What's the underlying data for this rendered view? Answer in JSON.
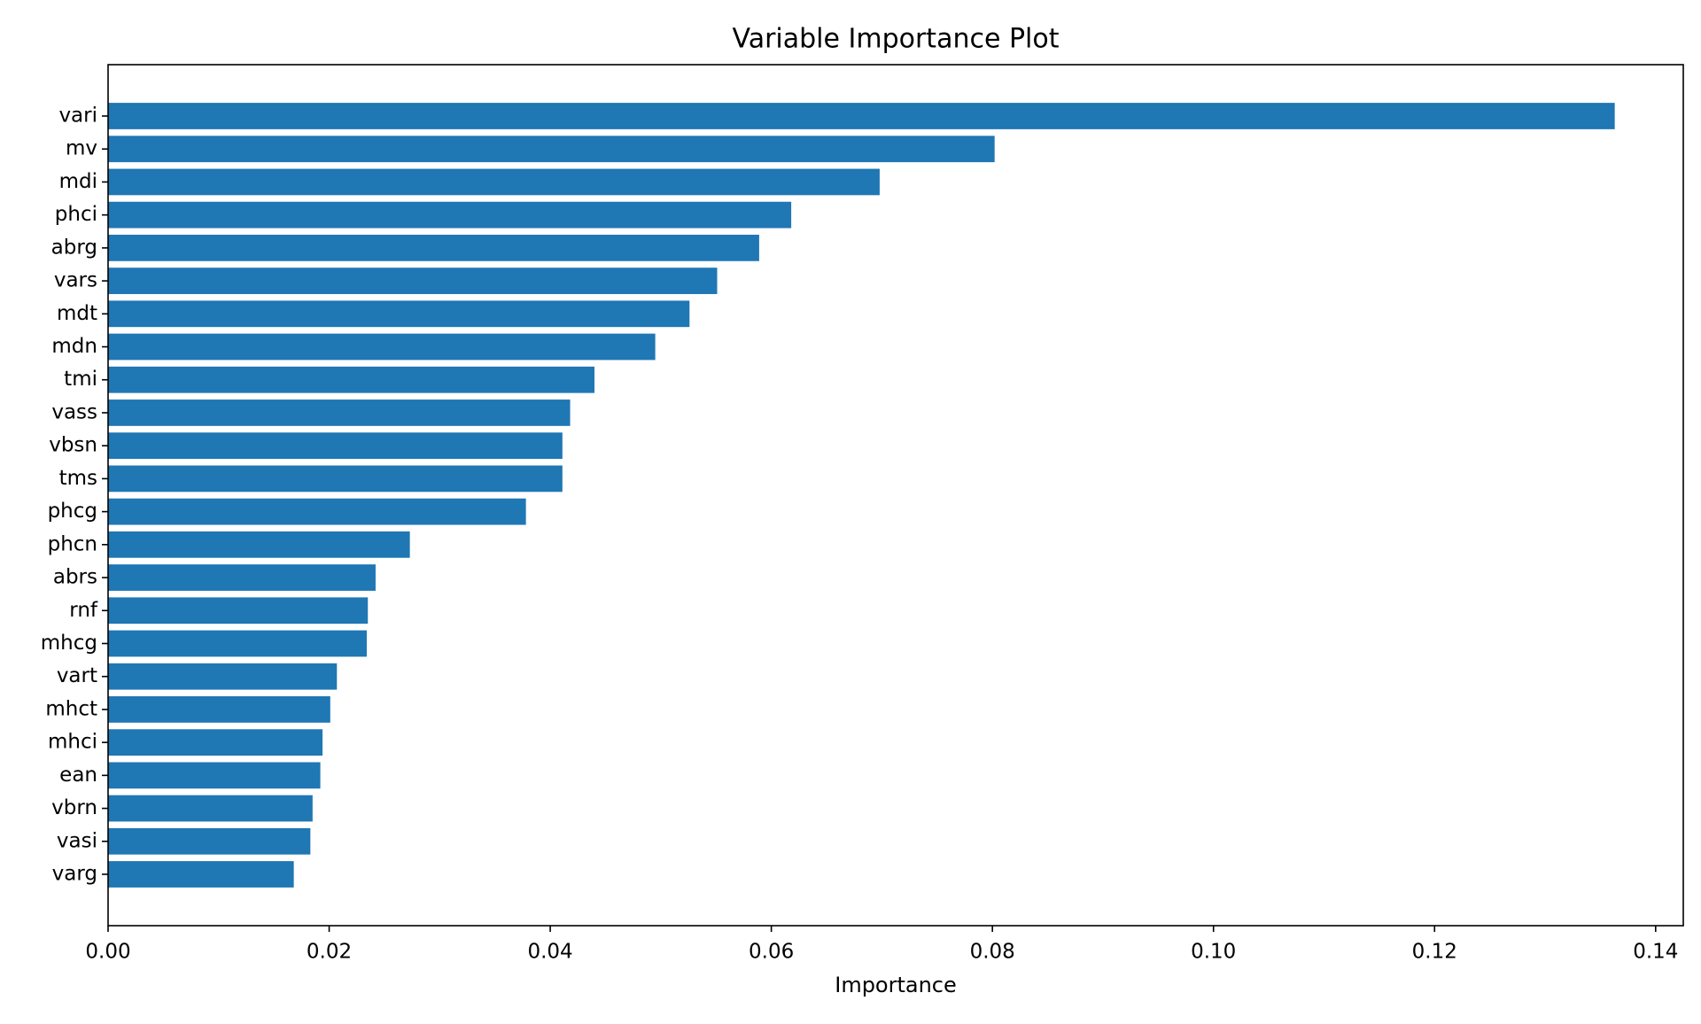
{
  "chart_data": {
    "type": "bar",
    "orientation": "horizontal",
    "title": "Variable Importance Plot",
    "xlabel": "Importance",
    "ylabel": "",
    "xlim": [
      0.0,
      0.1425
    ],
    "xticks": [
      0.0,
      0.02,
      0.04,
      0.06,
      0.08,
      0.1,
      0.12,
      0.14
    ],
    "xtick_labels": [
      "0.00",
      "0.02",
      "0.04",
      "0.06",
      "0.08",
      "0.10",
      "0.12",
      "0.14"
    ],
    "grid": false,
    "bar_color": "#1f77b4",
    "categories": [
      "vari",
      "mv",
      "mdi",
      "phci",
      "abrg",
      "vars",
      "mdt",
      "mdn",
      "tmi",
      "vass",
      "vbsn",
      "tms",
      "phcg",
      "phcn",
      "abrs",
      "rnf",
      "mhcg",
      "vart",
      "mhct",
      "mhci",
      "ean",
      "vbrn",
      "vasi",
      "varg"
    ],
    "values": [
      0.1363,
      0.0802,
      0.0698,
      0.0618,
      0.0589,
      0.0551,
      0.0526,
      0.0495,
      0.044,
      0.0418,
      0.0411,
      0.0411,
      0.0378,
      0.0273,
      0.0242,
      0.0235,
      0.0234,
      0.0207,
      0.0201,
      0.0194,
      0.0192,
      0.0185,
      0.0183,
      0.0168
    ]
  }
}
